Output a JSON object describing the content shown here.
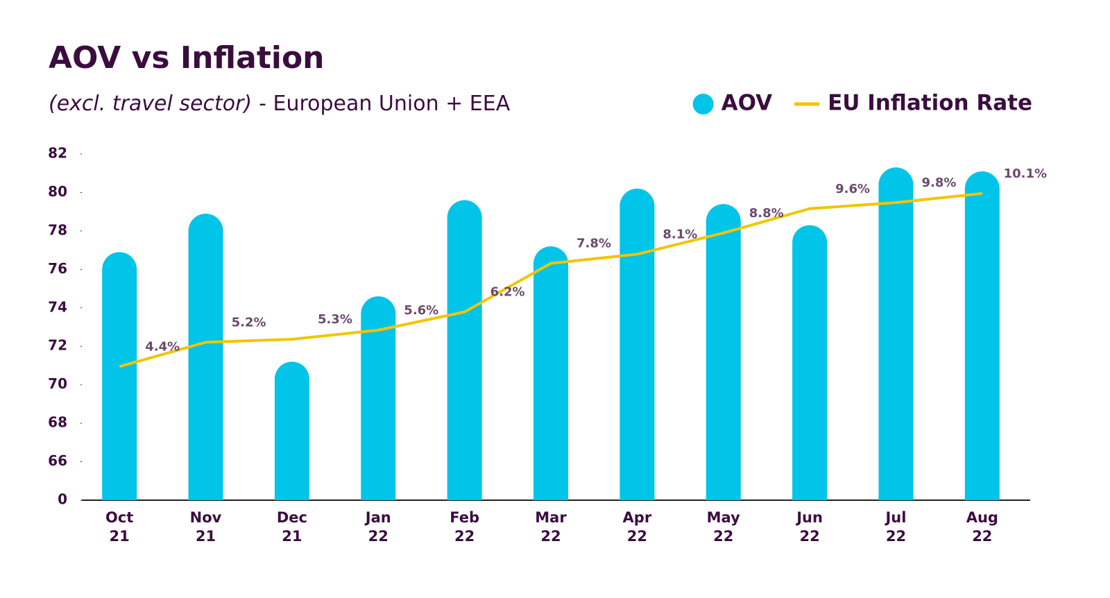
{
  "chart_data": {
    "type": "bar",
    "title": "AOV vs Inflation",
    "subtitle_note": "(excl. travel sector)",
    "subtitle": "- European Union + EEA",
    "categories": [
      "Oct\n21",
      "Nov\n21",
      "Dec\n21",
      "Jan\n22",
      "Feb\n22",
      "Mar\n22",
      "Apr\n22",
      "May\n22",
      "Jun\n22",
      "Jul\n22",
      "Aug\n22"
    ],
    "series": [
      {
        "name": "AOV",
        "type": "bar",
        "color": "#00c4e8",
        "values": [
          76.9,
          78.9,
          71.2,
          74.6,
          79.6,
          77.2,
          80.2,
          79.4,
          78.3,
          81.3,
          81.1
        ]
      },
      {
        "name": "EU Inflation Rate",
        "type": "line",
        "color": "#f2c500",
        "axis": "y2",
        "values": [
          4.4,
          5.2,
          5.3,
          5.6,
          6.2,
          7.8,
          8.1,
          8.8,
          9.6,
          9.8,
          10.1
        ],
        "value_labels": [
          "4.4%",
          "5.2%",
          "5.3%",
          "5.6%",
          "6.2%",
          "7.8%",
          "8.1%",
          "8.8%",
          "9.6%",
          "9.8%",
          "10.1%"
        ]
      }
    ],
    "ylim": [
      0,
      82
    ],
    "axis_break": [
      0,
      64
    ],
    "yticks": [
      0,
      66,
      68,
      70,
      72,
      74,
      76,
      78,
      80,
      82
    ],
    "y2lim": [
      0,
      11.4
    ],
    "legend": "top-right",
    "grid": false
  }
}
